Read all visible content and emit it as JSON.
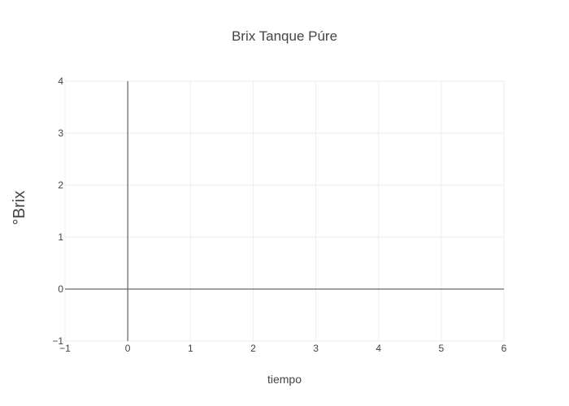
{
  "chart_data": {
    "type": "line",
    "title": "Brix Tanque Púre",
    "xlabel": "tiempo",
    "ylabel": "°Brix",
    "xlim": [
      -1,
      6
    ],
    "ylim": [
      -1,
      4
    ],
    "x_ticks": [
      -1,
      0,
      1,
      2,
      3,
      4,
      5,
      6
    ],
    "x_tick_labels": [
      "−1",
      "0",
      "1",
      "2",
      "3",
      "4",
      "5",
      "6"
    ],
    "y_ticks": [
      -1,
      0,
      1,
      2,
      3,
      4
    ],
    "y_tick_labels": [
      "−1",
      "0",
      "1",
      "2",
      "3",
      "4"
    ],
    "grid": true,
    "series": []
  }
}
